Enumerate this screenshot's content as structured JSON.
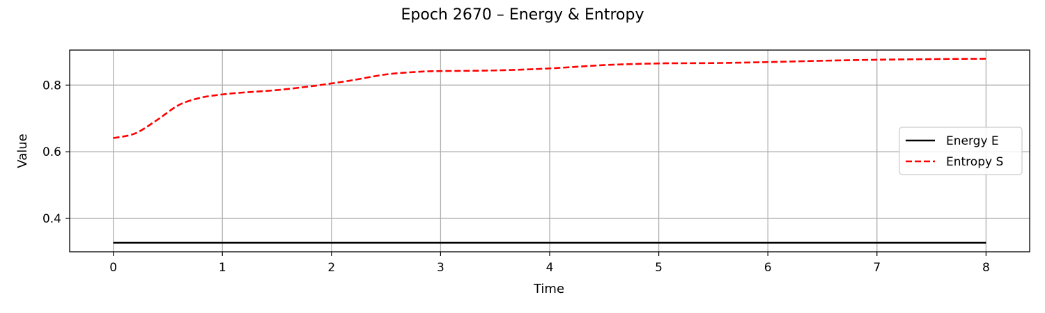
{
  "chart_data": {
    "type": "line",
    "title": "Epoch 2670 – Energy & Entropy",
    "xlabel": "Time",
    "ylabel": "Value",
    "xlim": [
      -0.4,
      8.4
    ],
    "ylim": [
      0.3,
      0.905
    ],
    "xticks": [
      0,
      1,
      2,
      3,
      4,
      5,
      6,
      7,
      8
    ],
    "yticks": [
      0.4,
      0.6,
      0.8
    ],
    "xtick_labels": [
      "0",
      "1",
      "2",
      "3",
      "4",
      "5",
      "6",
      "7",
      "8"
    ],
    "ytick_labels": [
      "0.4",
      "0.6",
      "0.8"
    ],
    "grid": true,
    "legend_position": "center-right",
    "series": [
      {
        "name": "Energy E",
        "color": "#000000",
        "style": "solid",
        "x": [
          0,
          8
        ],
        "y": [
          0.327,
          0.327
        ]
      },
      {
        "name": "Entropy S",
        "color": "#ff0000",
        "style": "dashed",
        "x": [
          0,
          0.2,
          0.4,
          0.6,
          0.8,
          1.0,
          1.2,
          1.5,
          1.8,
          2.0,
          2.2,
          2.5,
          2.8,
          3.0,
          3.5,
          4.0,
          4.5,
          5.0,
          5.5,
          6.0,
          6.5,
          7.0,
          7.5,
          8.0
        ],
        "y": [
          0.641,
          0.655,
          0.695,
          0.74,
          0.762,
          0.772,
          0.778,
          0.785,
          0.796,
          0.805,
          0.815,
          0.832,
          0.84,
          0.842,
          0.844,
          0.85,
          0.86,
          0.865,
          0.866,
          0.869,
          0.873,
          0.876,
          0.878,
          0.879
        ]
      }
    ]
  }
}
